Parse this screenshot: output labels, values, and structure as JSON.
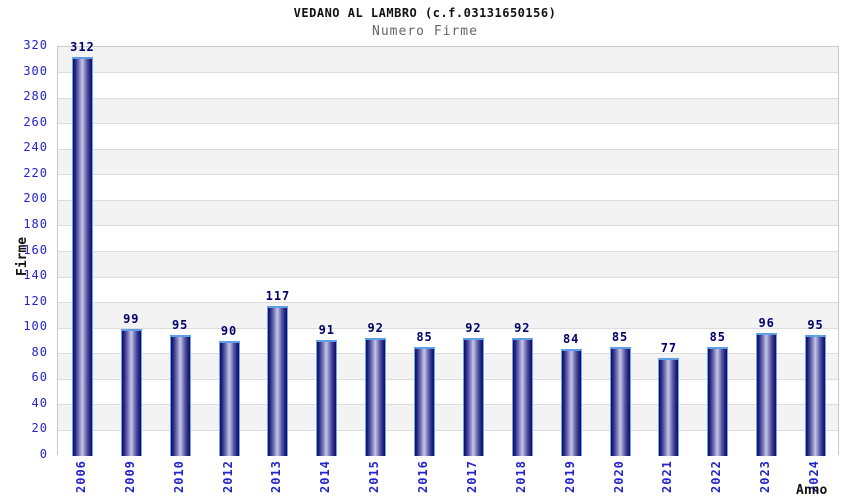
{
  "chart_data": {
    "type": "bar",
    "title": "VEDANO AL LAMBRO (c.f.03131650156)",
    "subtitle": "Numero Firme",
    "xlabel": "Anno",
    "ylabel": "Firme",
    "categories": [
      "2006",
      "2009",
      "2010",
      "2012",
      "2013",
      "2014",
      "2015",
      "2016",
      "2017",
      "2018",
      "2019",
      "2020",
      "2021",
      "2022",
      "2023",
      "2024"
    ],
    "values": [
      312,
      99,
      95,
      90,
      117,
      91,
      92,
      85,
      92,
      92,
      84,
      85,
      77,
      85,
      96,
      95
    ],
    "ylim": [
      0,
      320
    ],
    "ytick_step": 20,
    "legend": "none",
    "grid": "alternating horizontal bands with gridlines every 20 units",
    "colors": {
      "bar_dark": "#10105e",
      "bar_light": "#c9c9e8",
      "bar_outline": "#6ea7e8",
      "tick_label": "#2424cc",
      "value_label": "#00006a",
      "band_gray": "#f3f3f3",
      "band_white": "#ffffff",
      "grid_line": "#dcdcdc",
      "title": "#111111",
      "subtitle": "#666666"
    }
  }
}
